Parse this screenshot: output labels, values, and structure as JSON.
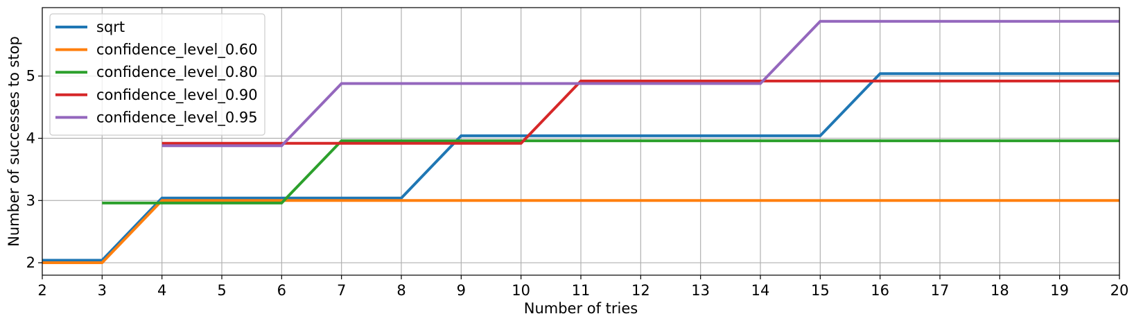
{
  "chart_data": {
    "type": "line",
    "xlabel": "Number of tries",
    "ylabel": "Number of successes to stop",
    "xlim": [
      2,
      20
    ],
    "ylim": [
      1.8,
      6.1
    ],
    "xticks": [
      2,
      3,
      4,
      5,
      6,
      7,
      8,
      9,
      10,
      11,
      12,
      13,
      14,
      15,
      16,
      17,
      18,
      19,
      20
    ],
    "yticks": [
      2,
      3,
      4,
      5
    ],
    "grid": true,
    "legend_position": "top-left",
    "series": [
      {
        "name": "sqrt",
        "color": "#1f77b4",
        "x": [
          2,
          3,
          4,
          5,
          6,
          7,
          8,
          9,
          10,
          11,
          12,
          13,
          14,
          15,
          16,
          17,
          18,
          19,
          20
        ],
        "y": [
          2.04,
          2.04,
          3.04,
          3.04,
          3.04,
          3.04,
          3.04,
          4.04,
          4.04,
          4.04,
          4.04,
          4.04,
          4.04,
          4.04,
          5.04,
          5.04,
          5.04,
          5.04,
          5.04
        ]
      },
      {
        "name": "confidence_level_0.60",
        "color": "#ff7f0e",
        "x": [
          2,
          3,
          4,
          5,
          6,
          7,
          8,
          9,
          10,
          11,
          12,
          13,
          14,
          15,
          16,
          17,
          18,
          19,
          20
        ],
        "y": [
          2.0,
          2.0,
          3.0,
          3.0,
          3.0,
          3.0,
          3.0,
          3.0,
          3.0,
          3.0,
          3.0,
          3.0,
          3.0,
          3.0,
          3.0,
          3.0,
          3.0,
          3.0,
          3.0
        ]
      },
      {
        "name": "confidence_level_0.80",
        "color": "#2ca02c",
        "x": [
          3,
          4,
          5,
          6,
          7,
          8,
          9,
          10,
          11,
          12,
          13,
          14,
          15,
          16,
          17,
          18,
          19,
          20
        ],
        "y": [
          2.96,
          2.96,
          2.96,
          2.96,
          3.96,
          3.96,
          3.96,
          3.96,
          3.96,
          3.96,
          3.96,
          3.96,
          3.96,
          3.96,
          3.96,
          3.96,
          3.96,
          3.96
        ]
      },
      {
        "name": "confidence_level_0.90",
        "color": "#d62728",
        "x": [
          4,
          5,
          6,
          7,
          8,
          9,
          10,
          11,
          12,
          13,
          14,
          15,
          16,
          17,
          18,
          19,
          20
        ],
        "y": [
          3.92,
          3.92,
          3.92,
          3.92,
          3.92,
          3.92,
          3.92,
          4.92,
          4.92,
          4.92,
          4.92,
          4.92,
          4.92,
          4.92,
          4.92,
          4.92,
          4.92
        ]
      },
      {
        "name": "confidence_level_0.95",
        "color": "#9467bd",
        "x": [
          4,
          5,
          6,
          7,
          8,
          9,
          10,
          11,
          12,
          13,
          14,
          15,
          16,
          17,
          18,
          19,
          20
        ],
        "y": [
          3.88,
          3.88,
          3.88,
          4.88,
          4.88,
          4.88,
          4.88,
          4.88,
          4.88,
          4.88,
          4.88,
          5.88,
          5.88,
          5.88,
          5.88,
          5.88,
          5.88
        ]
      }
    ]
  }
}
